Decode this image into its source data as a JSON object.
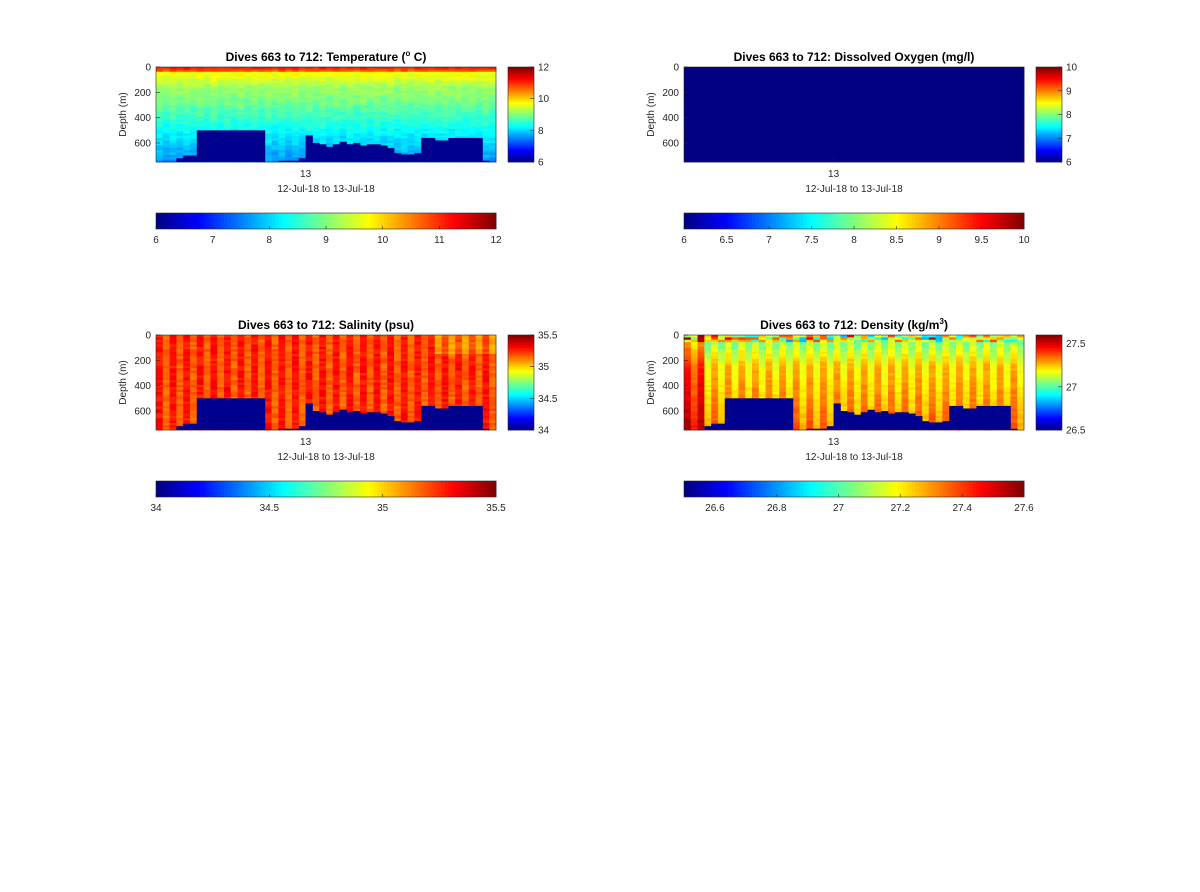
{
  "chart_data": [
    {
      "type": "heatmap",
      "title": "Dives 663 to 712: Temperature (",
      "title_super": "o",
      "title_tail": " C)",
      "ylabel": "Depth (m)",
      "yticks": [
        "0",
        "200",
        "400",
        "600"
      ],
      "yticks_values": [
        0,
        200,
        400,
        600
      ],
      "ylim": [
        0,
        750
      ],
      "xtick_label": "13",
      "xlabel": "12-Jul-18 to 13-Jul-18",
      "clim": [
        6,
        12
      ],
      "colorbar_right_ticks": [
        "6",
        "8",
        "10",
        "12"
      ],
      "colorbar_bottom_ticks": [
        "6",
        "7",
        "8",
        "9",
        "10",
        "11",
        "12"
      ],
      "profile": "temperature",
      "seafloor": [
        750,
        750,
        750,
        720,
        700,
        700,
        500,
        500,
        500,
        500,
        500,
        500,
        500,
        500,
        500,
        500,
        750,
        750,
        740,
        740,
        740,
        720,
        540,
        600,
        610,
        630,
        610,
        590,
        610,
        600,
        620,
        610,
        610,
        620,
        640,
        680,
        690,
        690,
        680,
        560,
        560,
        580,
        580,
        560,
        560,
        560,
        560,
        560,
        740,
        750
      ]
    },
    {
      "type": "heatmap",
      "title": "Dives 663 to 712: Dissolved Oxygen (mg/l)",
      "title_super": "",
      "title_tail": "",
      "ylabel": "Depth (m)",
      "yticks": [
        "0",
        "200",
        "400",
        "600"
      ],
      "yticks_values": [
        0,
        200,
        400,
        600
      ],
      "ylim": [
        0,
        750
      ],
      "xtick_label": "13",
      "xlabel": "12-Jul-18 to 13-Jul-18",
      "clim": [
        6,
        10
      ],
      "colorbar_right_ticks": [
        "6",
        "7",
        "8",
        "9",
        "10"
      ],
      "colorbar_bottom_ticks": [
        "6",
        "6.5",
        "7",
        "7.5",
        "8",
        "8.5",
        "9",
        "9.5",
        "10"
      ],
      "profile": "oxygen",
      "seafloor": []
    },
    {
      "type": "heatmap",
      "title": "Dives 663 to 712: Salinity (psu)",
      "title_super": "",
      "title_tail": "",
      "ylabel": "Depth (m)",
      "yticks": [
        "0",
        "200",
        "400",
        "600"
      ],
      "yticks_values": [
        0,
        200,
        400,
        600
      ],
      "ylim": [
        0,
        750
      ],
      "xtick_label": "13",
      "xlabel": "12-Jul-18 to 13-Jul-18",
      "clim": [
        34,
        35.5
      ],
      "colorbar_right_ticks": [
        "34",
        "34.5",
        "35",
        "35.5"
      ],
      "colorbar_bottom_ticks": [
        "34",
        "34.5",
        "35",
        "35.5"
      ],
      "profile": "salinity",
      "seafloor": [
        750,
        750,
        750,
        720,
        700,
        700,
        500,
        500,
        500,
        500,
        500,
        500,
        500,
        500,
        500,
        500,
        750,
        750,
        740,
        740,
        740,
        720,
        540,
        600,
        610,
        630,
        610,
        590,
        610,
        600,
        620,
        610,
        610,
        620,
        640,
        680,
        690,
        690,
        680,
        560,
        560,
        580,
        580,
        560,
        560,
        560,
        560,
        560,
        740,
        750
      ]
    },
    {
      "type": "heatmap",
      "title": "Dives 663 to 712: Density (kg/m",
      "title_super": "3",
      "title_tail": ")",
      "ylabel": "Depth (m)",
      "yticks": [
        "0",
        "200",
        "400",
        "600"
      ],
      "yticks_values": [
        0,
        200,
        400,
        600
      ],
      "ylim": [
        0,
        750
      ],
      "xtick_label": "13",
      "xlabel": "12-Jul-18 to 13-Jul-18",
      "clim": [
        26.5,
        27.6
      ],
      "colorbar_right_ticks": [
        "26.5",
        "27",
        "27.5"
      ],
      "colorbar_right_values": [
        26.5,
        27,
        27.5
      ],
      "colorbar_bottom_ticks": [
        "26.6",
        "26.8",
        "27",
        "27.2",
        "27.4",
        "27.6"
      ],
      "colorbar_bottom_values": [
        26.6,
        26.8,
        27,
        27.2,
        27.4,
        27.6
      ],
      "profile": "density",
      "seafloor": [
        750,
        750,
        750,
        720,
        700,
        700,
        500,
        500,
        500,
        500,
        500,
        500,
        500,
        500,
        500,
        500,
        750,
        750,
        740,
        740,
        740,
        720,
        540,
        600,
        610,
        630,
        610,
        590,
        610,
        600,
        620,
        610,
        610,
        620,
        640,
        680,
        690,
        690,
        680,
        560,
        560,
        580,
        580,
        560,
        560,
        560,
        560,
        560,
        740,
        750
      ]
    }
  ],
  "colormap": "jet",
  "seafloor_color": "#00008f"
}
